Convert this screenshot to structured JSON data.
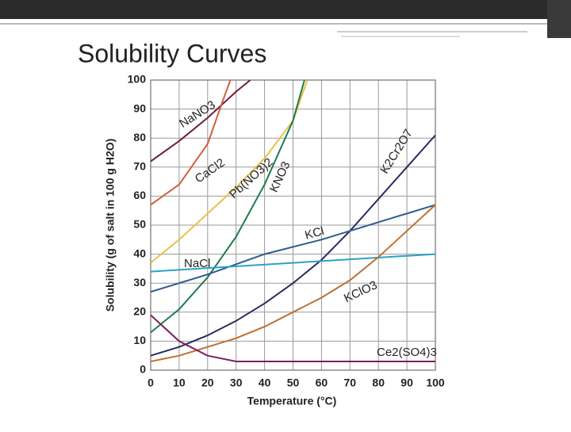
{
  "title": "Solubility Curves",
  "chart_data": {
    "type": "line",
    "xlabel": "Temperature (°C)",
    "ylabel": "Solubility (g of salt in 100 g H2O)",
    "xlim": [
      0,
      100
    ],
    "ylim": [
      0,
      100
    ],
    "xticks": [
      0,
      10,
      20,
      30,
      40,
      50,
      60,
      70,
      80,
      90,
      100
    ],
    "yticks": [
      0,
      10,
      20,
      30,
      40,
      50,
      60,
      70,
      80,
      90,
      100
    ],
    "grid": true,
    "series": [
      {
        "name": "NaNO3",
        "color": "#6e1f3c",
        "x": [
          0,
          10,
          20,
          30,
          35
        ],
        "values": [
          72,
          79,
          87,
          96,
          100
        ]
      },
      {
        "name": "CaCl2",
        "color": "#d0603a",
        "x": [
          0,
          10,
          20,
          25,
          28
        ],
        "values": [
          57,
          64,
          78,
          92,
          100
        ]
      },
      {
        "name": "Pb(NO3)2",
        "color": "#e8c24a",
        "x": [
          0,
          10,
          20,
          30,
          40,
          50,
          55
        ],
        "values": [
          37,
          45,
          54,
          63,
          73,
          86,
          100
        ]
      },
      {
        "name": "KNO3",
        "color": "#1f7a4c",
        "x": [
          0,
          10,
          20,
          30,
          40,
          50,
          54
        ],
        "values": [
          13,
          21,
          32,
          46,
          64,
          86,
          100
        ]
      },
      {
        "name": "K2Cr2O7",
        "color": "#2b2b5e",
        "x": [
          0,
          10,
          20,
          30,
          40,
          50,
          60,
          70,
          80,
          90,
          100
        ],
        "values": [
          5,
          8,
          12,
          17,
          23,
          30,
          38,
          48,
          59,
          70,
          81
        ]
      },
      {
        "name": "KCl",
        "color": "#2e5c8c",
        "x": [
          0,
          20,
          40,
          60,
          80,
          100
        ],
        "values": [
          27,
          33,
          40,
          45,
          51,
          57
        ]
      },
      {
        "name": "NaCl",
        "color": "#2aa2c8",
        "x": [
          0,
          50,
          100
        ],
        "values": [
          34,
          37,
          40
        ]
      },
      {
        "name": "KClO3",
        "color": "#c07030",
        "x": [
          0,
          10,
          20,
          30,
          40,
          50,
          60,
          70,
          80,
          90,
          100
        ],
        "values": [
          3,
          5,
          8,
          11,
          15,
          20,
          25,
          31,
          39,
          48,
          57
        ]
      },
      {
        "name": "Ce2(SO4)3",
        "color": "#7a2060",
        "x": [
          0,
          10,
          20,
          30,
          40,
          100
        ],
        "values": [
          19,
          10,
          5,
          3,
          3,
          3
        ]
      }
    ]
  }
}
